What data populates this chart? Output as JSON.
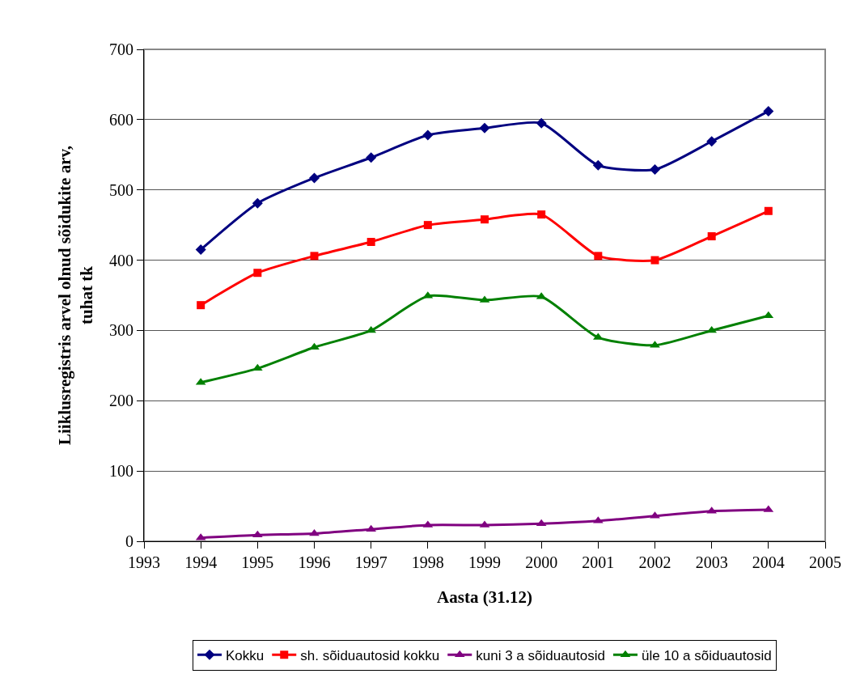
{
  "chart_data": {
    "type": "line",
    "xlabel": "Aasta (31.12)",
    "ylabel": "Liiklusregistris arvel olnud sõidukite arv, tuhat tk",
    "x": [
      1994,
      1995,
      1996,
      1997,
      1998,
      1999,
      2000,
      2001,
      2002,
      2003,
      2004
    ],
    "series": [
      {
        "name": "Kokku",
        "color": "#000080",
        "marker": "diamond",
        "values": [
          415,
          481,
          517,
          546,
          578,
          588,
          595,
          535,
          529,
          569,
          612
        ]
      },
      {
        "name": "sh. sõiduautosid kokku",
        "color": "#ff0000",
        "marker": "square",
        "values": [
          336,
          382,
          406,
          426,
          450,
          458,
          465,
          406,
          400,
          434,
          470
        ]
      },
      {
        "name": "kuni 3 a sõiduautosid",
        "color": "#800080",
        "marker": "triangle",
        "values": [
          5,
          9,
          11,
          17,
          23,
          23,
          25,
          29,
          36,
          43,
          45
        ]
      },
      {
        "name": "üle 10 a sõiduautosid",
        "color": "#008000",
        "marker": "triangle",
        "values": [
          226,
          246,
          276,
          300,
          349,
          343,
          348,
          290,
          279,
          300,
          321
        ]
      }
    ],
    "xlim": [
      1993,
      2005
    ],
    "xticks": [
      1993,
      1994,
      1995,
      1996,
      1997,
      1998,
      1999,
      2000,
      2001,
      2002,
      2003,
      2004,
      2005
    ],
    "ylim": [
      0,
      700
    ],
    "yticks": [
      0,
      100,
      200,
      300,
      400,
      500,
      600,
      700
    ],
    "grid": "y",
    "legend": "bottom",
    "line_style": "solid"
  }
}
